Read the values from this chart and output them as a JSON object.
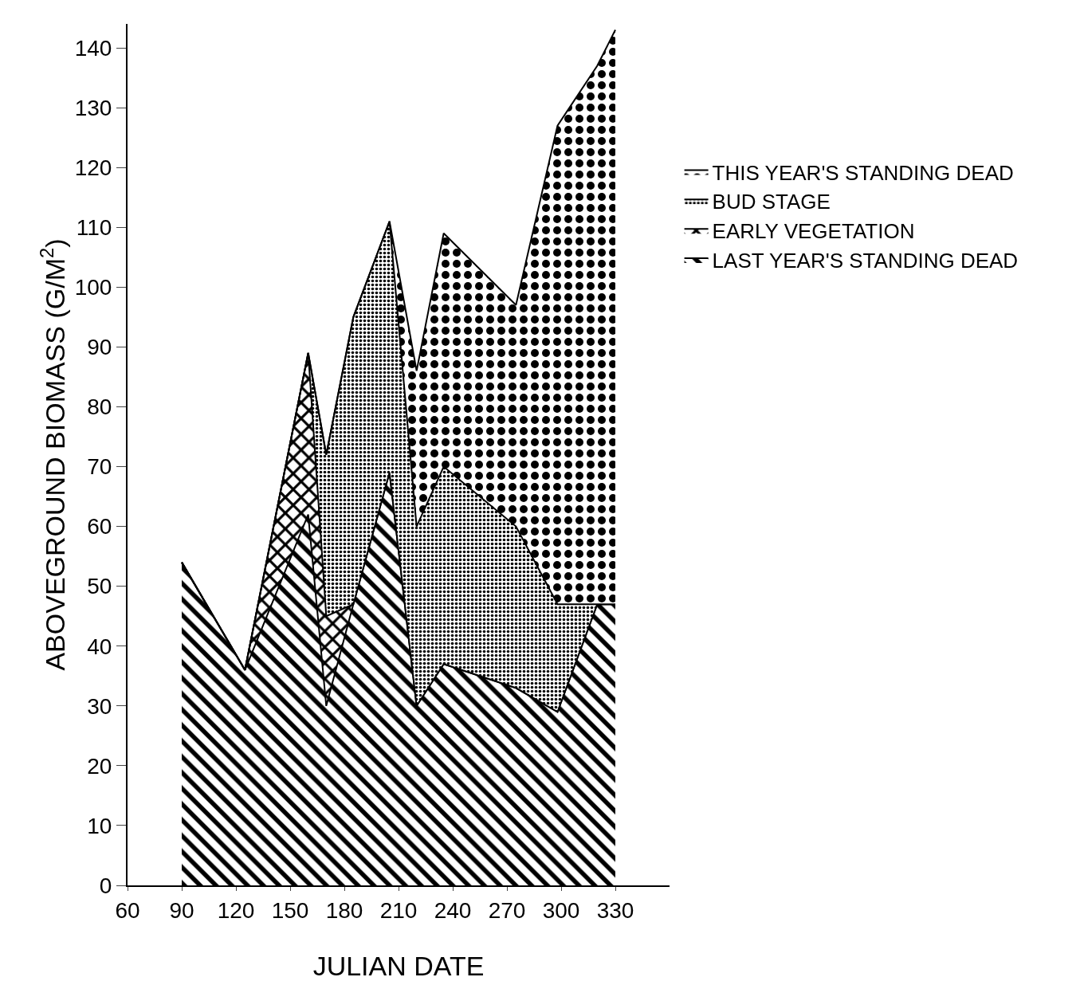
{
  "chart_data": {
    "type": "area",
    "stacked": true,
    "xlabel": "JULIAN DATE",
    "ylabel": "ABOVEGROUND BIOMASS (G/M$^{2}$)",
    "x": [
      90,
      125,
      160,
      170,
      185,
      205,
      220,
      235,
      275,
      298,
      320,
      330
    ],
    "series": [
      {
        "name": "LAST YEAR'S STANDING DEAD",
        "color": "#000000",
        "values": [
          54,
          36,
          62,
          30,
          47,
          69,
          30,
          37,
          33,
          29,
          47,
          47
        ]
      },
      {
        "name": "EARLY VEGETATION",
        "color": "#000000",
        "values": [
          0,
          0,
          27,
          15,
          0,
          0,
          0,
          0,
          0,
          0,
          0,
          0
        ]
      },
      {
        "name": "BUD STAGE",
        "color": "#000000",
        "values": [
          0,
          0,
          0,
          27,
          48,
          42,
          30,
          33,
          27,
          18,
          0,
          0
        ]
      },
      {
        "name": "THIS YEAR'S STANDING DEAD",
        "color": "#000000",
        "values": [
          0,
          0,
          0,
          0,
          0,
          0,
          26,
          39,
          37,
          80,
          90,
          96
        ]
      }
    ],
    "xlim": [
      60,
      360
    ],
    "xticks": [
      60,
      90,
      120,
      150,
      180,
      210,
      240,
      270,
      300,
      330
    ],
    "ylim": [
      0,
      144
    ],
    "yticks": [
      0,
      10,
      20,
      30,
      40,
      50,
      60,
      70,
      80,
      90,
      100,
      110,
      120,
      130,
      140
    ],
    "grid": false,
    "legend": "right"
  }
}
